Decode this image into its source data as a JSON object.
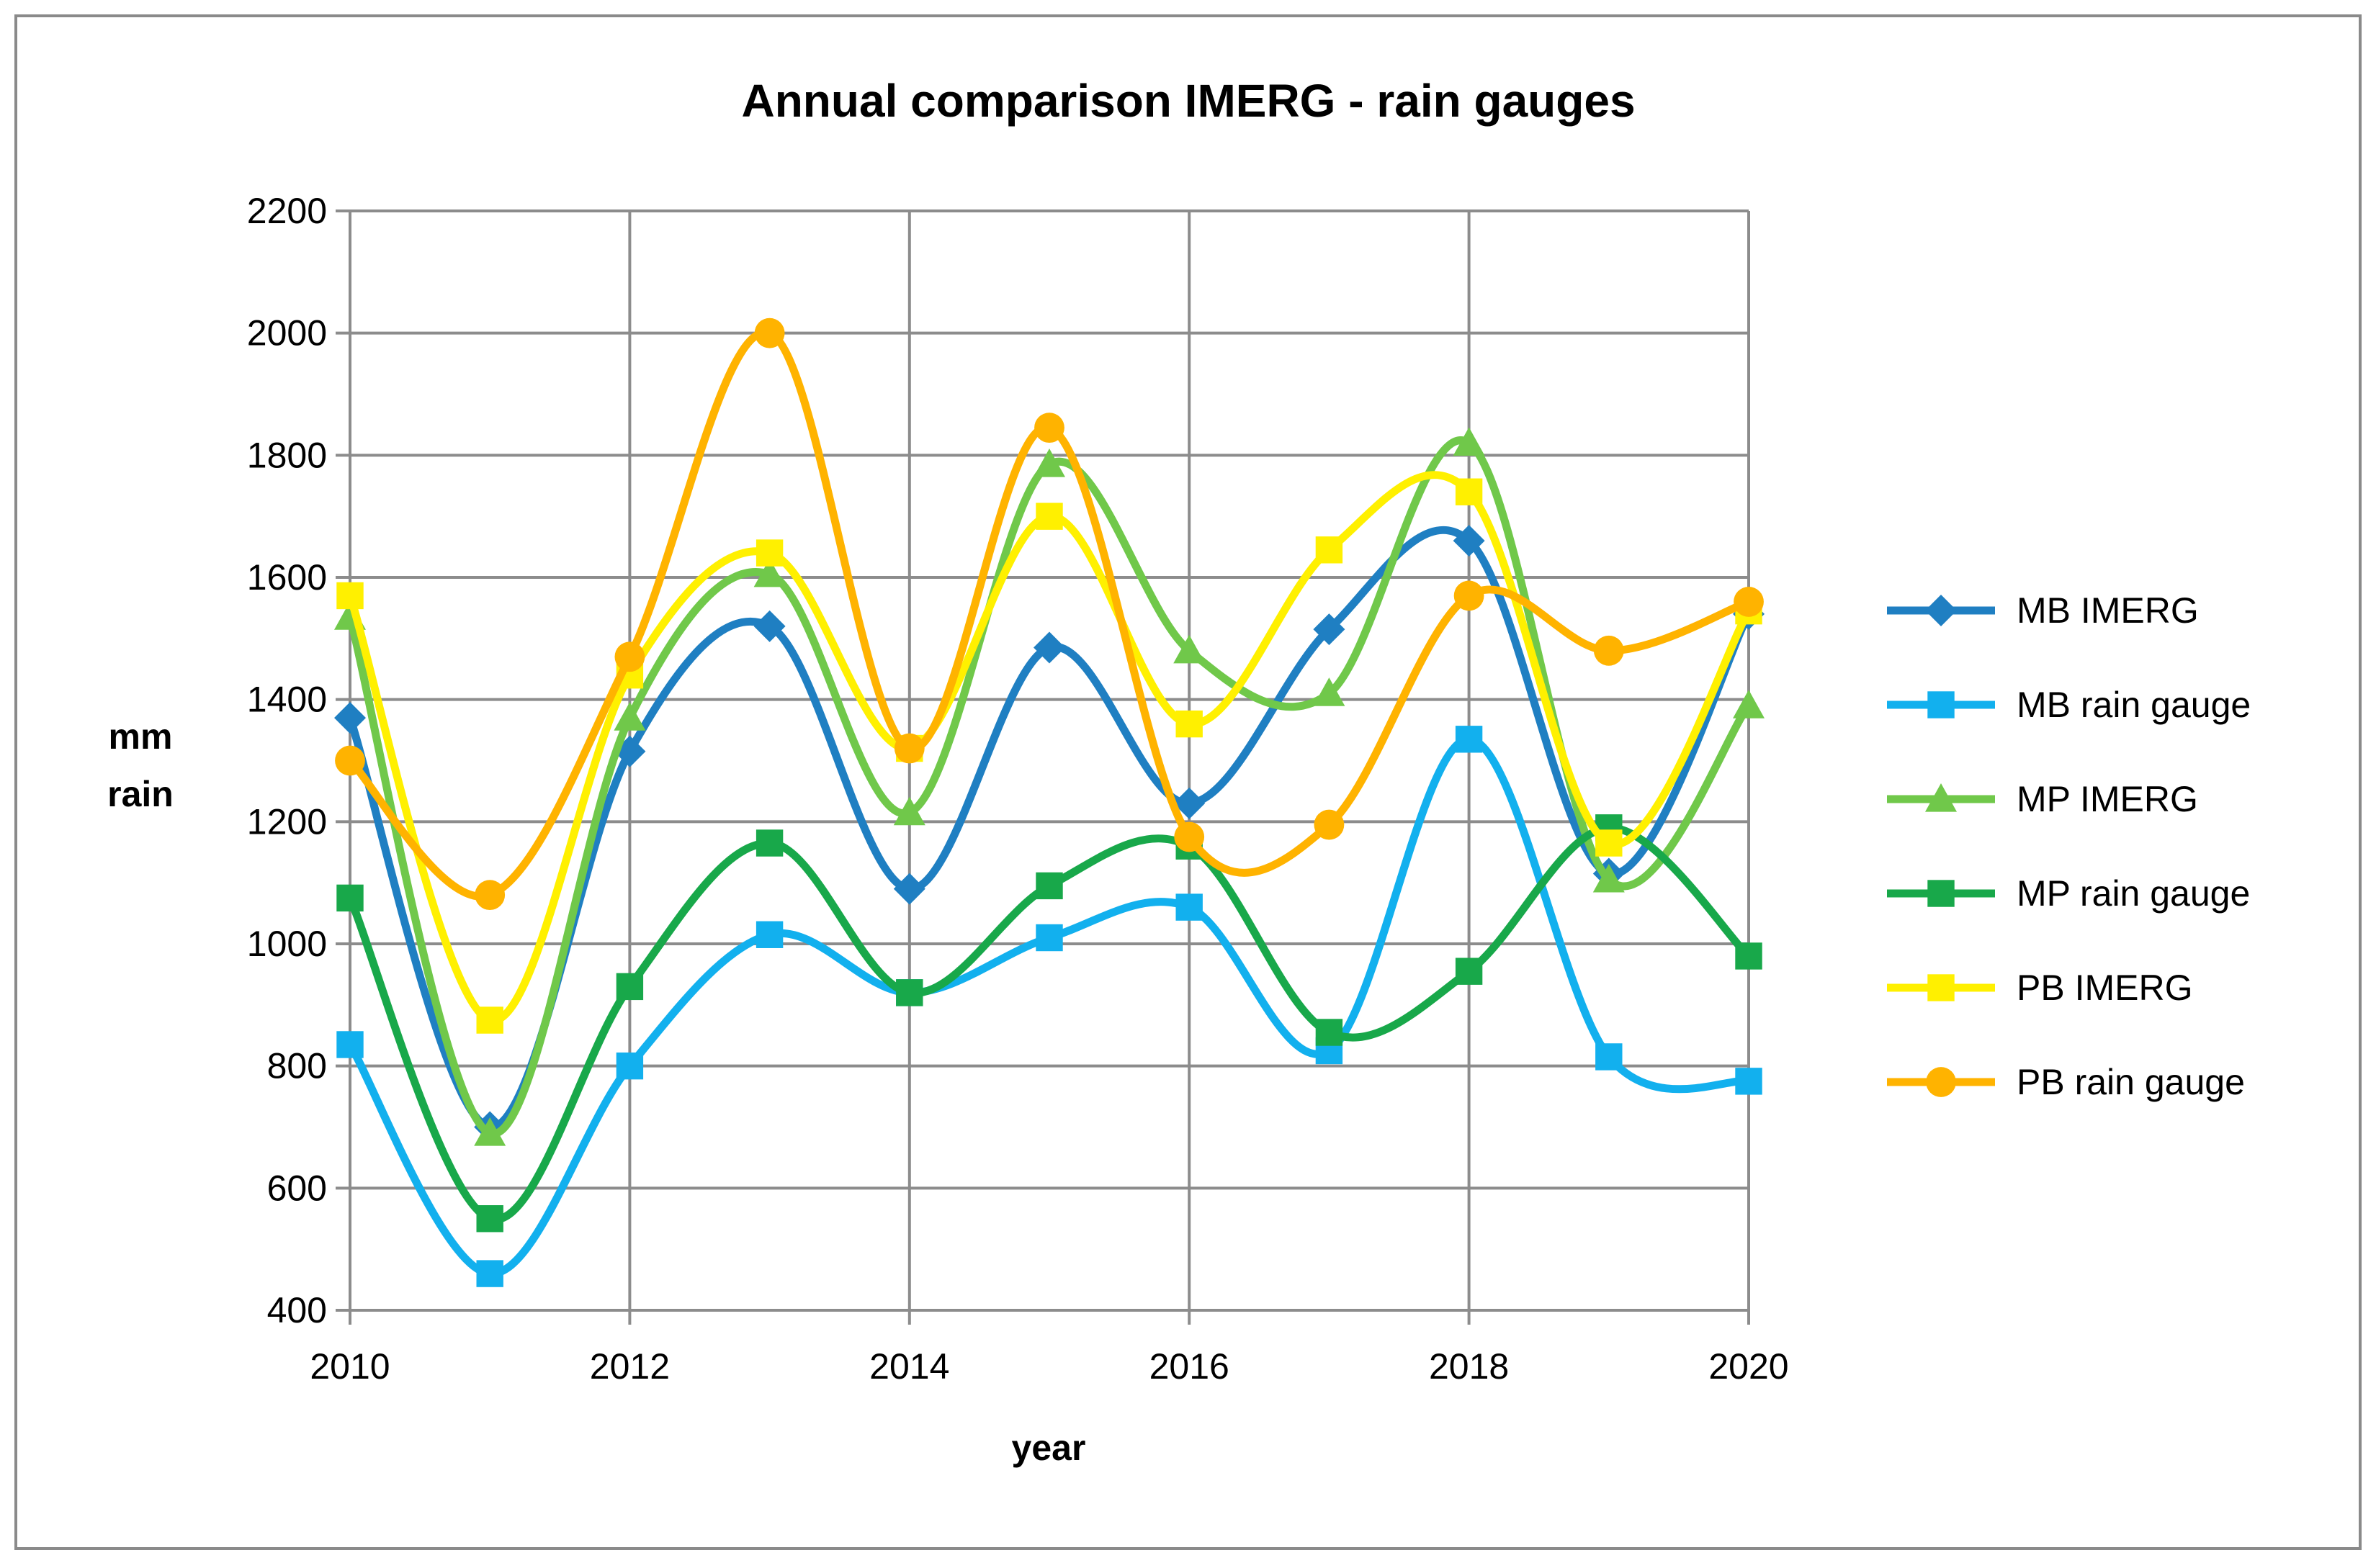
{
  "chart_data": {
    "type": "line",
    "title": "Annual comparison IMERG - rain gauges",
    "xlabel": "year",
    "ylabel_lines": [
      "mm",
      "rain"
    ],
    "x": [
      2010,
      2011,
      2012,
      2013,
      2014,
      2015,
      2016,
      2017,
      2018,
      2019,
      2020
    ],
    "xlim": [
      2010,
      2020
    ],
    "ylim": [
      400,
      2200
    ],
    "x_ticks": [
      "2010",
      "2012",
      "2014",
      "2016",
      "2018",
      "2020"
    ],
    "y_ticks": [
      "400",
      "600",
      "800",
      "1000",
      "1200",
      "1400",
      "1600",
      "1800",
      "2000",
      "2200"
    ],
    "grid": "horizontal",
    "legend_position": "right",
    "smoothed": true,
    "series": [
      {
        "name": "MB IMERG",
        "color": "#1F7FC2",
        "marker": "diamond",
        "values": [
          1370,
          700,
          1315,
          1520,
          1090,
          1485,
          1230,
          1515,
          1660,
          1115,
          1540
        ]
      },
      {
        "name": "MB rain gauge",
        "color": "#12B0EE",
        "marker": "square",
        "values": [
          835,
          460,
          800,
          1015,
          920,
          1010,
          1060,
          825,
          1335,
          815,
          775
        ]
      },
      {
        "name": "MP IMERG",
        "color": "#70C84A",
        "marker": "triangle",
        "values": [
          1535,
          690,
          1370,
          1605,
          1215,
          1785,
          1480,
          1410,
          1820,
          1105,
          1390
        ]
      },
      {
        "name": "MP rain gauge",
        "color": "#18A84A",
        "marker": "square",
        "values": [
          1075,
          550,
          930,
          1165,
          920,
          1095,
          1160,
          855,
          955,
          1190,
          980
        ]
      },
      {
        "name": "PB IMERG",
        "color": "#FFF000",
        "marker": "square",
        "values": [
          1570,
          875,
          1440,
          1640,
          1320,
          1700,
          1360,
          1645,
          1740,
          1165,
          1545
        ]
      },
      {
        "name": "PB rain gauge",
        "color": "#FFB300",
        "marker": "circle",
        "values": [
          1300,
          1080,
          1470,
          2000,
          1320,
          1845,
          1175,
          1195,
          1570,
          1480,
          1560
        ]
      }
    ]
  }
}
